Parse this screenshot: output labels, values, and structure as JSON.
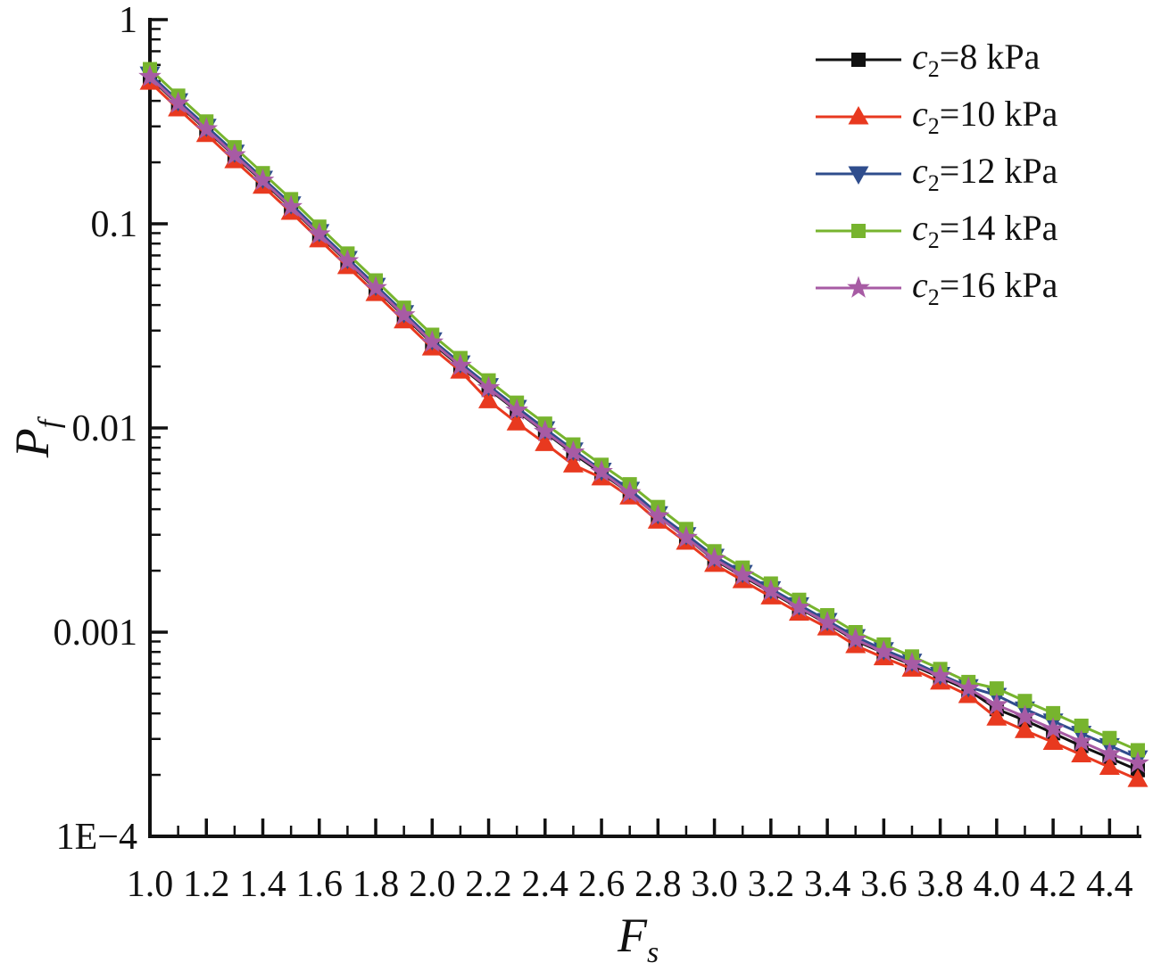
{
  "figure": {
    "background": "#ffffff",
    "ink_color": "#111111"
  },
  "axes": {
    "y_label": {
      "var": "P",
      "sub": "f"
    },
    "x_label": {
      "var": "F",
      "sub": "s"
    },
    "y_tick_labels": [
      "1",
      "0.1",
      "0.01",
      "0.001",
      "1E−4"
    ],
    "x_tick_labels": [
      "1.0",
      "1.2",
      "1.4",
      "1.6",
      "1.8",
      "2.0",
      "2.2",
      "2.4",
      "2.6",
      "2.8",
      "3.0",
      "3.2",
      "3.4",
      "3.6",
      "3.8",
      "4.0",
      "4.2",
      "4.4"
    ]
  },
  "legend": {
    "position": "top-right",
    "items": [
      {
        "id": "c2-8",
        "var": "c",
        "sub": "2",
        "rest": "=8 kPa",
        "color": "#111111",
        "marker": "square"
      },
      {
        "id": "c2-10",
        "var": "c",
        "sub": "2",
        "rest": "=10 kPa",
        "color": "#e8391f",
        "marker": "triangle-up"
      },
      {
        "id": "c2-12",
        "var": "c",
        "sub": "2",
        "rest": "=12 kPa",
        "color": "#2f4d8d",
        "marker": "triangle-down"
      },
      {
        "id": "c2-14",
        "var": "c",
        "sub": "2",
        "rest": "=14 kPa",
        "color": "#77b42e",
        "marker": "square"
      },
      {
        "id": "c2-16",
        "var": "c",
        "sub": "2",
        "rest": "=16 kPa",
        "color": "#a75ba4",
        "marker": "star"
      }
    ]
  },
  "chart_data": {
    "type": "line",
    "title": "",
    "xlabel": "F_s",
    "ylabel": "P_f",
    "x_scale": "linear",
    "y_scale": "log",
    "xlim": [
      1.0,
      4.5
    ],
    "ylim": [
      0.0001,
      1
    ],
    "grid": false,
    "legend_position": "top-right",
    "x": [
      1.0,
      1.1,
      1.2,
      1.3,
      1.4,
      1.5,
      1.6,
      1.7,
      1.8,
      1.9,
      2.0,
      2.1,
      2.2,
      2.3,
      2.4,
      2.5,
      2.6,
      2.7,
      2.8,
      2.9,
      3.0,
      3.1,
      3.2,
      3.3,
      3.4,
      3.5,
      3.6,
      3.7,
      3.8,
      3.9,
      4.0,
      4.1,
      4.2,
      4.3,
      4.4,
      4.5
    ],
    "series": [
      {
        "id": "c2-8",
        "name": "c2=8 kPa",
        "color": "#111111",
        "marker": "square",
        "values": [
          0.52,
          0.385,
          0.288,
          0.215,
          0.161,
          0.12,
          0.088,
          0.065,
          0.048,
          0.0353,
          0.026,
          0.02,
          0.0155,
          0.0121,
          0.0095,
          0.0075,
          0.006,
          0.0048,
          0.0037,
          0.0029,
          0.00226,
          0.00188,
          0.00157,
          0.00131,
          0.0011,
          0.00091,
          0.00079,
          0.00069,
          0.0006,
          0.00052,
          0.00042,
          0.00037,
          0.00032,
          0.000277,
          0.000242,
          0.000211
        ]
      },
      {
        "id": "c2-10",
        "name": "c2=10 kPa",
        "color": "#e8391f",
        "marker": "triangle-up",
        "values": [
          0.494,
          0.366,
          0.274,
          0.204,
          0.153,
          0.114,
          0.0836,
          0.0618,
          0.0456,
          0.0335,
          0.0247,
          0.019,
          0.0136,
          0.0106,
          0.0084,
          0.0066,
          0.0057,
          0.0046,
          0.0035,
          0.00276,
          0.00215,
          0.00179,
          0.00149,
          0.00124,
          0.00105,
          0.00086,
          0.00075,
          0.00066,
          0.00057,
          0.00049,
          0.00038,
          0.00033,
          0.000289,
          0.000251,
          0.000218,
          0.00019
        ]
      },
      {
        "id": "c2-12",
        "name": "c2=12 kPa",
        "color": "#2f4d8d",
        "marker": "triangle-down",
        "values": [
          0.541,
          0.4,
          0.3,
          0.224,
          0.167,
          0.125,
          0.0915,
          0.0676,
          0.0499,
          0.0367,
          0.027,
          0.0208,
          0.0161,
          0.0126,
          0.0099,
          0.0078,
          0.0062,
          0.005,
          0.0038,
          0.003,
          0.00235,
          0.00196,
          0.00163,
          0.00136,
          0.00114,
          0.00095,
          0.00082,
          0.00072,
          0.00062,
          0.00054,
          0.00049,
          0.00042,
          0.000367,
          0.000319,
          0.000278,
          0.000242
        ]
      },
      {
        "id": "c2-14",
        "name": "c2=14 kPa",
        "color": "#77b42e",
        "marker": "square",
        "values": [
          0.572,
          0.424,
          0.317,
          0.237,
          0.177,
          0.132,
          0.0968,
          0.0715,
          0.0528,
          0.0388,
          0.0286,
          0.022,
          0.0171,
          0.0133,
          0.0105,
          0.0083,
          0.0066,
          0.0053,
          0.0041,
          0.0032,
          0.00249,
          0.00207,
          0.00173,
          0.00144,
          0.00121,
          0.001,
          0.00087,
          0.00076,
          0.00066,
          0.00057,
          0.00053,
          0.00046,
          0.000401,
          0.000348,
          0.000303,
          0.000264
        ]
      },
      {
        "id": "c2-16",
        "name": "c2=16 kPa",
        "color": "#a75ba4",
        "marker": "star",
        "values": [
          0.525,
          0.389,
          0.291,
          0.217,
          0.163,
          0.121,
          0.0889,
          0.0657,
          0.0485,
          0.0357,
          0.0263,
          0.0202,
          0.0157,
          0.0122,
          0.0096,
          0.0076,
          0.0061,
          0.0048,
          0.0037,
          0.0029,
          0.00228,
          0.0019,
          0.00159,
          0.00132,
          0.00111,
          0.00092,
          0.0008,
          0.0007,
          0.00061,
          0.00053,
          0.00044,
          0.000385,
          0.000335,
          0.000291,
          0.000253,
          0.000228
        ]
      }
    ]
  }
}
